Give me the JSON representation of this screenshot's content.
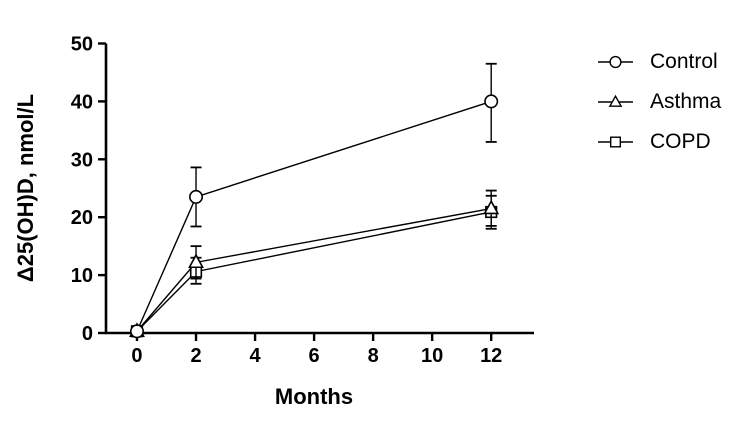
{
  "figure": {
    "background": "#ffffff",
    "ink_color": "#000000",
    "marker_fill": "#ffffff"
  },
  "chart_data": {
    "type": "line",
    "title": "",
    "xlabel": "Months",
    "ylabel": "Δ25(OH)D, nmol/L",
    "x_ticks": [
      0,
      2,
      4,
      6,
      8,
      10,
      12
    ],
    "y_ticks": [
      0,
      10,
      20,
      30,
      40,
      50
    ],
    "xlim": [
      -1.05,
      13.45
    ],
    "ylim": [
      0,
      50
    ],
    "grid": false,
    "legend_position": "right",
    "x": [
      0,
      2,
      12
    ],
    "series": [
      {
        "name": "Control",
        "marker": "circle",
        "values": [
          0.3,
          23.5,
          40.0
        ],
        "err_up": [
          0,
          5.1,
          6.5
        ],
        "err_down": [
          0,
          5.1,
          7.0
        ]
      },
      {
        "name": "Asthma",
        "marker": "triangle",
        "values": [
          0.3,
          12.2,
          21.5
        ],
        "err_up": [
          0,
          2.8,
          3.1
        ],
        "err_down": [
          0,
          2.8,
          3.0
        ]
      },
      {
        "name": "COPD",
        "marker": "square",
        "values": [
          0.3,
          10.6,
          20.9
        ],
        "err_up": [
          0,
          2.4,
          2.8
        ],
        "err_down": [
          0,
          2.1,
          2.9
        ]
      }
    ]
  }
}
